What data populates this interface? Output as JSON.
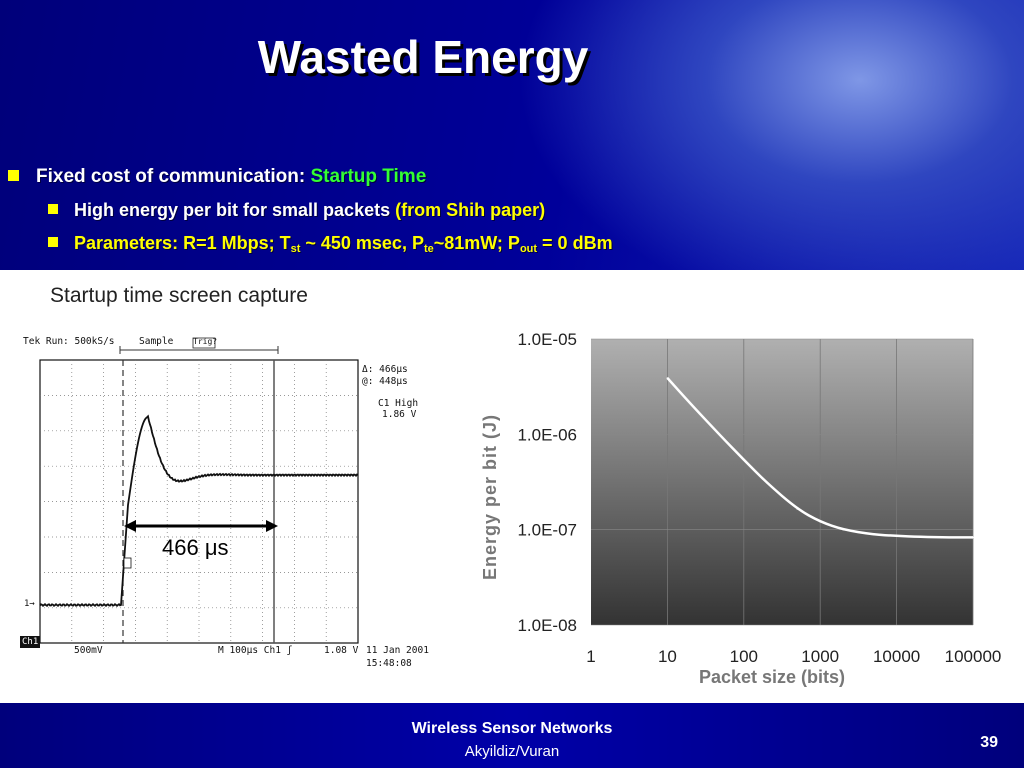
{
  "slide": {
    "title": "Wasted Energy",
    "bullets": {
      "b1_text": "Fixed cost of communication: ",
      "b1_highlight": "Startup Time",
      "b2_text": "High energy per bit for small packets ",
      "b2_highlight": "(from Shih paper)",
      "b3_prefix": "Parameters: R=1 Mbps; T",
      "b3_sub1": "st",
      "b3_mid1": " ~ 450 msec, P",
      "b3_sub2": "te",
      "b3_mid2": "~81mW; P",
      "b3_sub3": "out",
      "b3_suffix": " = 0 dBm"
    },
    "colors": {
      "accent_green": "#33ff33",
      "accent_yellow": "#ffff00",
      "band_blue": "#00009a"
    }
  },
  "scope": {
    "caption": "Startup time screen capture",
    "header_run": "Tek Run: 500kS/s",
    "header_sample": "Sample",
    "header_trig": "Trig?",
    "delta": "Δ: 466μs",
    "at": "@: 448μs",
    "c1_high_label": "C1 High",
    "c1_high_value": "1.86 V",
    "measure_label": "466 μs",
    "ch1_marker": "1→",
    "bottom_ch1": "Ch1",
    "bottom_volts": "500mV",
    "bottom_time": "M  100μs  Ch1  ʃ",
    "bottom_trig_level": "1.08 V",
    "date": "11 Jan 2001",
    "time": "15:48:08"
  },
  "chart_data": {
    "type": "line",
    "title": "",
    "xlabel": "Packet size (bits)",
    "ylabel": "Energy per bit (J)",
    "x_scale": "log",
    "y_scale": "log",
    "x_ticks": [
      "1",
      "10",
      "100",
      "1000",
      "10000",
      "100000"
    ],
    "y_ticks": [
      "1.0E-05",
      "1.0E-06",
      "1.0E-07",
      "1.0E-08"
    ],
    "xlim": [
      1,
      100000
    ],
    "ylim": [
      1e-08,
      1e-05
    ],
    "grid": true,
    "series": [
      {
        "x": [
          10,
          20,
          50,
          100,
          200,
          500,
          1000,
          2000,
          5000,
          10000,
          20000,
          50000,
          100000
        ],
        "values": [
          3.9e-06,
          2.1e-06,
          9.6e-07,
          5.4e-07,
          3.1e-07,
          1.65e-07,
          1.21e-07,
          1e-07,
          8.9e-08,
          8.6e-08,
          8.4e-08,
          8.3e-08,
          8.3e-08
        ]
      }
    ]
  },
  "footer": {
    "line1": "Wireless Sensor Networks",
    "line2": "Akyildiz/Vuran",
    "page_number": "39"
  }
}
